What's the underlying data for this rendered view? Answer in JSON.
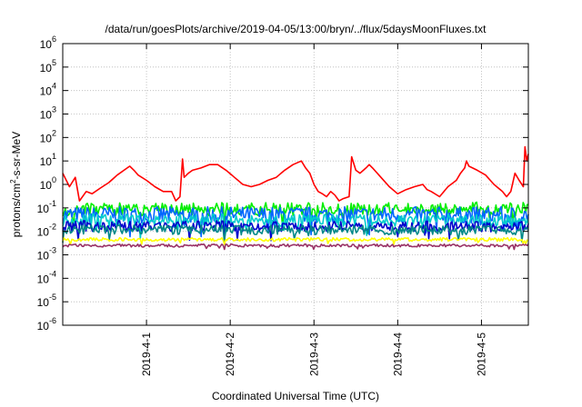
{
  "chart_data": {
    "type": "line",
    "title": "/data/run/goesPlots/archive/2019-04-05/13:00/bryn/../flux/5daysMoonFluxes.txt",
    "xlabel": "Coordinated Universal Time (UTC)",
    "ylabel": {
      "base": "protons/cm",
      "sup": "2",
      "rest": "-s-sr-MeV"
    },
    "y_scale": "log",
    "ylim": [
      1e-06,
      1000000.0
    ],
    "y_ticks": [
      {
        "value": 1e-06,
        "base": "10",
        "exp": "-6"
      },
      {
        "value": 1e-05,
        "base": "10",
        "exp": "-5"
      },
      {
        "value": 0.0001,
        "base": "10",
        "exp": "-4"
      },
      {
        "value": 0.001,
        "base": "10",
        "exp": "-3"
      },
      {
        "value": 0.01,
        "base": "10",
        "exp": "-2"
      },
      {
        "value": 0.1,
        "base": "10",
        "exp": "-1"
      },
      {
        "value": 1,
        "base": "10",
        "exp": "0"
      },
      {
        "value": 10,
        "base": "10",
        "exp": "1"
      },
      {
        "value": 100,
        "base": "10",
        "exp": "2"
      },
      {
        "value": 1000,
        "base": "10",
        "exp": "3"
      },
      {
        "value": 10000,
        "base": "10",
        "exp": "4"
      },
      {
        "value": 100000,
        "base": "10",
        "exp": "5"
      },
      {
        "value": 1000000,
        "base": "10",
        "exp": "6"
      }
    ],
    "x_unit": "days since 2019-03-31 00:00 UTC",
    "xlim": [
      0,
      5.56
    ],
    "x_ticks": [
      {
        "value": 1,
        "label": "2019-4-1"
      },
      {
        "value": 2,
        "label": "2019-4-2"
      },
      {
        "value": 3,
        "label": "2019-4-3"
      },
      {
        "value": 4,
        "label": "2019-4-4"
      },
      {
        "value": 5,
        "label": "2019-4-5"
      }
    ],
    "grid": true,
    "legend": "none",
    "series": [
      {
        "color": "#ff0000",
        "x": [
          0,
          0.08,
          0.15,
          0.2,
          0.28,
          0.35,
          0.45,
          0.55,
          0.65,
          0.75,
          0.8,
          0.85,
          0.9,
          1.0,
          1.1,
          1.2,
          1.3,
          1.35,
          1.4,
          1.43,
          1.45,
          1.5,
          1.55,
          1.65,
          1.75,
          1.85,
          1.95,
          2.05,
          2.15,
          2.25,
          2.35,
          2.45,
          2.55,
          2.65,
          2.75,
          2.85,
          2.9,
          2.95,
          3.0,
          3.05,
          3.1,
          3.15,
          3.2,
          3.25,
          3.3,
          3.35,
          3.42,
          3.45,
          3.5,
          3.55,
          3.62,
          3.66,
          3.7,
          3.8,
          3.9,
          4.0,
          4.1,
          4.2,
          4.3,
          4.35,
          4.4,
          4.5,
          4.6,
          4.7,
          4.75,
          4.8,
          4.82,
          4.85,
          4.95,
          5.05,
          5.15,
          5.25,
          5.3,
          5.35,
          5.4,
          5.45,
          5.5,
          5.52,
          5.54,
          5.56
        ],
        "y": [
          3,
          0.8,
          2,
          0.2,
          0.5,
          0.4,
          0.7,
          1.2,
          2.5,
          4.5,
          6,
          4,
          2.5,
          1.5,
          0.8,
          0.5,
          0.5,
          0.2,
          0.3,
          12,
          2,
          3,
          4,
          5,
          7,
          7,
          4,
          2,
          1,
          0.8,
          1,
          1.5,
          2,
          4,
          7,
          10,
          5,
          3,
          1,
          0.5,
          0.4,
          0.3,
          0.5,
          0.35,
          0.2,
          0.25,
          0.3,
          15,
          4,
          3,
          5,
          7,
          5,
          2,
          0.8,
          0.4,
          0.6,
          0.8,
          1,
          0.6,
          0.5,
          0.3,
          0.8,
          1.5,
          3,
          5,
          10,
          6,
          4,
          2.5,
          1,
          0.5,
          0.3,
          0.5,
          3,
          1.5,
          0.8,
          40,
          10,
          20
        ]
      },
      {
        "color": "#00ee00",
        "x": [
          0,
          5.56
        ],
        "y": [
          0.085,
          0.095
        ],
        "noise": 0.55,
        "seed": 3
      },
      {
        "color": "#0066ff",
        "x": [
          0,
          5.56
        ],
        "y": [
          0.05,
          0.05
        ],
        "noise": 0.7,
        "seed": 7
      },
      {
        "color": "#00cccc",
        "x": [
          0,
          5.56
        ],
        "y": [
          0.03,
          0.028
        ],
        "noise": 0.55,
        "seed": 11
      },
      {
        "color": "#0000cc",
        "x": [
          0,
          5.56
        ],
        "y": [
          0.017,
          0.016
        ],
        "noise": 0.45,
        "seed": 19
      },
      {
        "color": "#008888",
        "x": [
          0,
          5.56
        ],
        "y": [
          0.012,
          0.011
        ],
        "noise": 0.4,
        "seed": 23
      },
      {
        "color": "#ffff00",
        "x": [
          0,
          5.56
        ],
        "y": [
          0.0045,
          0.0045
        ],
        "noise": 0.15,
        "seed": 29
      },
      {
        "color": "#993366",
        "x": [
          0,
          5.56
        ],
        "y": [
          0.0025,
          0.0025
        ],
        "noise": 0.12,
        "seed": 31
      }
    ]
  }
}
